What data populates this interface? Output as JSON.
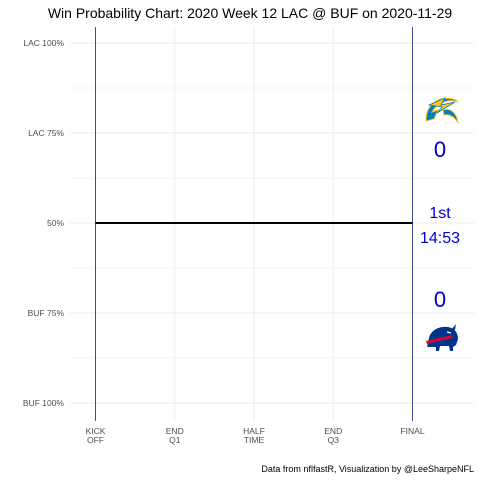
{
  "chart_data": {
    "type": "line",
    "title": "Win Probability Chart: 2020 Week 12 LAC @ BUF on 2020-11-29",
    "y_ticks": [
      {
        "label": "LAC 100%",
        "value": 0
      },
      {
        "label": "LAC 75%",
        "value": 25
      },
      {
        "label": "50%",
        "value": 50
      },
      {
        "label": "BUF 75%",
        "value": 75
      },
      {
        "label": "BUF 100%",
        "value": 100
      }
    ],
    "x_ticks": [
      {
        "label": [
          "KICK",
          "OFF"
        ],
        "value": 0
      },
      {
        "label": [
          "END",
          "Q1"
        ],
        "value": 15
      },
      {
        "label": [
          "HALF",
          "TIME"
        ],
        "value": 30
      },
      {
        "label": [
          "END",
          "Q3"
        ],
        "value": 45
      },
      {
        "label": [
          "FINAL"
        ],
        "value": 60
      }
    ],
    "xlim": [
      0,
      60
    ],
    "ylim": [
      0,
      100
    ],
    "grid": true,
    "series": [
      {
        "x": [
          0,
          60
        ],
        "y": [
          50,
          50
        ],
        "color": "#000000"
      }
    ],
    "vertical_lines": [
      0,
      60
    ],
    "vertical_line_color": "#1a237e",
    "away_score": "0",
    "home_score": "0",
    "quarter": "1st",
    "clock": "14:53",
    "away_logo_icon": "chargers-bolt-icon",
    "home_logo_icon": "bills-buffalo-icon",
    "caption": "Data from nflfastR, Visualization by @LeeSharpeNFL",
    "colors": {
      "score": "#0000cc",
      "grid": "#ebebeb",
      "chargers_blue": "#0080c6",
      "chargers_gold": "#ffc20e",
      "bills_blue": "#00338d",
      "bills_red": "#c60c30"
    }
  }
}
